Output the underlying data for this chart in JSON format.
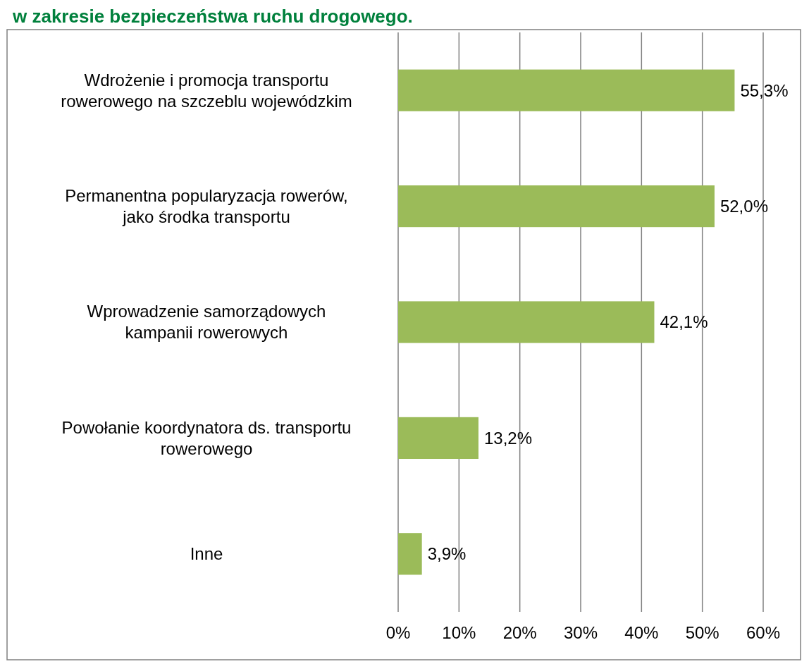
{
  "chart_data": {
    "type": "bar",
    "orientation": "horizontal",
    "title": "w zakresie bezpieczeństwa ruchu drogowego.",
    "categories": [
      "Wdrożenie i promocja transportu\nrowerowego na szczeblu wojewódzkim",
      "Permanentna popularyzacja rowerów,\njako środka transportu",
      "Wprowadzenie samorządowych\nkampanii rowerowych",
      "Powołanie koordynatora ds. transportu\nrowerowego",
      "Inne"
    ],
    "values": [
      55.3,
      52.0,
      42.1,
      13.2,
      3.9
    ],
    "value_labels": [
      "55,3%",
      "52,0%",
      "42,1%",
      "13,2%",
      "3,9%"
    ],
    "color": "#9bbb59",
    "xlim": [
      0,
      60
    ],
    "xticks": [
      {
        "value": 0,
        "label": "0%"
      },
      {
        "value": 10,
        "label": "10%"
      },
      {
        "value": 20,
        "label": "20%"
      },
      {
        "value": 30,
        "label": "30%"
      },
      {
        "value": 40,
        "label": "40%"
      },
      {
        "value": 50,
        "label": "50%"
      },
      {
        "value": 60,
        "label": "60%"
      }
    ],
    "grid": "x"
  }
}
